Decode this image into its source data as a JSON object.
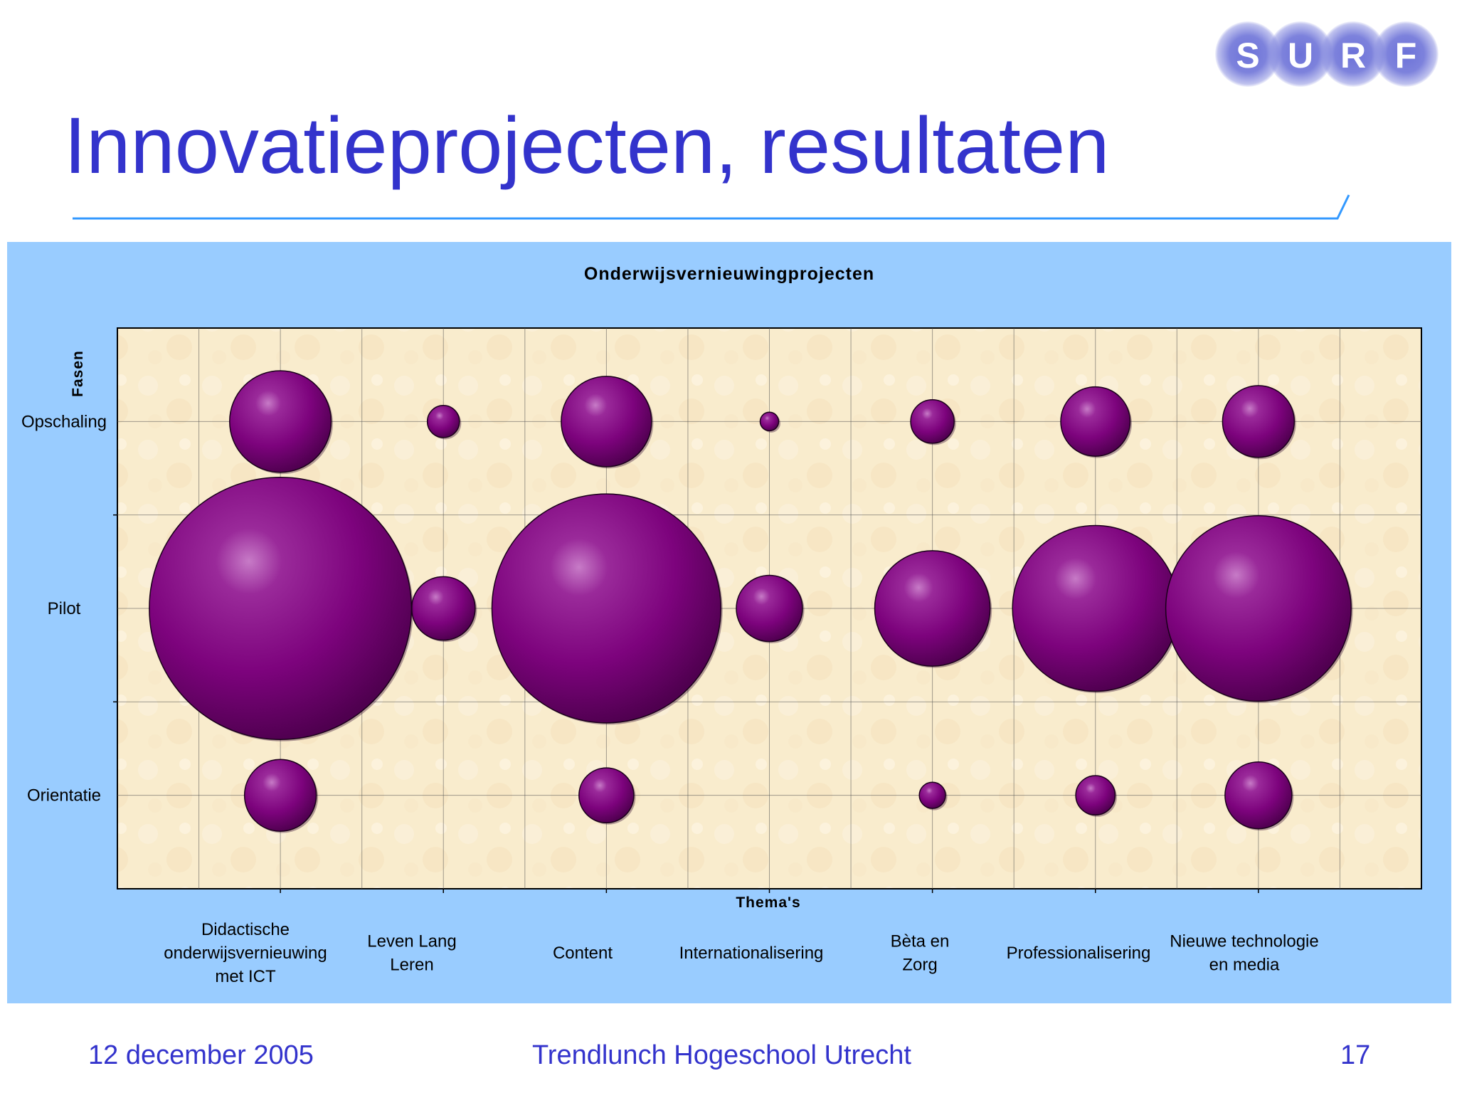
{
  "slide": {
    "title": "Innovatieprojecten, resultaten",
    "footer": {
      "date": "12 december 2005",
      "event": "Trendlunch Hogeschool Utrecht",
      "page": "17"
    },
    "logo": {
      "letters": [
        "S",
        "U",
        "R",
        "F"
      ]
    },
    "colors": {
      "title": "#3333cc",
      "panel": "#99ccff",
      "plot": "#f9eccd",
      "bubble": "#800080",
      "rule": "#3399ff"
    }
  },
  "chart_data": {
    "type": "bubble",
    "title": "Onderwijsvernieuwingprojecten",
    "xlabel": "Thema's",
    "ylabel": "Fasen",
    "categories": [
      "Didactische onderwijsvernieuwing met ICT",
      "Leven Lang Leren",
      "Content",
      "Internationalisering",
      "Bèta en Zorg",
      "Professionalisering",
      "Nieuwe technologie en media"
    ],
    "category_labels": [
      [
        "Didactische",
        "onderwijsvernieuwing",
        "met ICT"
      ],
      [
        "Leven Lang",
        "Leren"
      ],
      [
        "Content"
      ],
      [
        "Internationalisering"
      ],
      [
        "Bèta en",
        "Zorg"
      ],
      [
        "Professionalisering"
      ],
      [
        "Nieuwe technologie",
        "en media"
      ]
    ],
    "phases": [
      "Orientatie",
      "Pilot",
      "Opschaling"
    ],
    "xlim": [
      0,
      8
    ],
    "ylim": [
      0,
      3
    ],
    "grid": true,
    "legend": "none",
    "points": [
      {
        "x": 1,
        "y": 2.5,
        "size": 12
      },
      {
        "x": 2,
        "y": 2.5,
        "size": 1.2
      },
      {
        "x": 3,
        "y": 2.5,
        "size": 9.5
      },
      {
        "x": 4,
        "y": 2.5,
        "size": 0.4
      },
      {
        "x": 5,
        "y": 2.5,
        "size": 2.2
      },
      {
        "x": 6,
        "y": 2.5,
        "size": 5.6
      },
      {
        "x": 7,
        "y": 2.5,
        "size": 6
      },
      {
        "x": 1,
        "y": 1.5,
        "size": 80
      },
      {
        "x": 2,
        "y": 1.5,
        "size": 4.7
      },
      {
        "x": 3,
        "y": 1.5,
        "size": 61
      },
      {
        "x": 4,
        "y": 1.5,
        "size": 5.1
      },
      {
        "x": 5,
        "y": 1.5,
        "size": 15.5
      },
      {
        "x": 6,
        "y": 1.5,
        "size": 32
      },
      {
        "x": 7,
        "y": 1.5,
        "size": 40
      },
      {
        "x": 1,
        "y": 0.5,
        "size": 6
      },
      {
        "x": 3,
        "y": 0.5,
        "size": 3.5
      },
      {
        "x": 5,
        "y": 0.5,
        "size": 0.8
      },
      {
        "x": 6,
        "y": 0.5,
        "size": 1.8
      },
      {
        "x": 7,
        "y": 0.5,
        "size": 5.2
      }
    ]
  }
}
